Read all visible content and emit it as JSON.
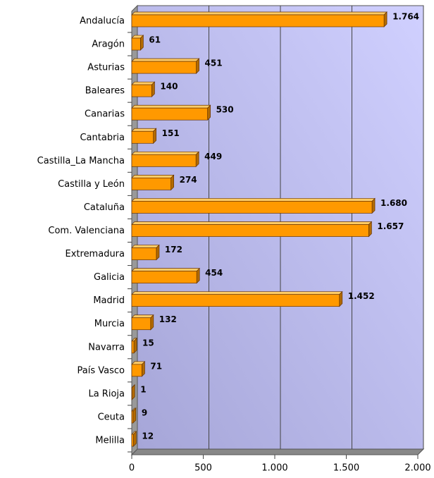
{
  "chart_data": {
    "type": "bar",
    "orientation": "horizontal",
    "categories": [
      "Andalucía",
      "Aragón",
      "Asturias",
      "Baleares",
      "Canarias",
      "Cantabria",
      "Castilla_La Mancha",
      "Castilla y León",
      "Cataluña",
      "Com. Valenciana",
      "Extremadura",
      "Galicia",
      "Madrid",
      "Murcia",
      "Navarra",
      "País Vasco",
      "La Rioja",
      "Ceuta",
      "Melilla"
    ],
    "values": [
      1764,
      61,
      451,
      140,
      530,
      151,
      449,
      274,
      1680,
      1657,
      172,
      454,
      1452,
      132,
      15,
      71,
      1,
      9,
      12
    ],
    "value_labels": [
      "1.764",
      "61",
      "451",
      "140",
      "530",
      "151",
      "449",
      "274",
      "1.680",
      "1.657",
      "172",
      "454",
      "1.452",
      "132",
      "15",
      "71",
      "1",
      "9",
      "12"
    ],
    "color": "#ff9900",
    "xlim": [
      0,
      2000
    ],
    "xticks": [
      0,
      500,
      {
        "value": 1000,
        "label": "1.000"
      },
      {
        "value": 1500,
        "label": "1.500"
      },
      {
        "value": 2000,
        "label": "2.000"
      }
    ],
    "grid": true
  }
}
